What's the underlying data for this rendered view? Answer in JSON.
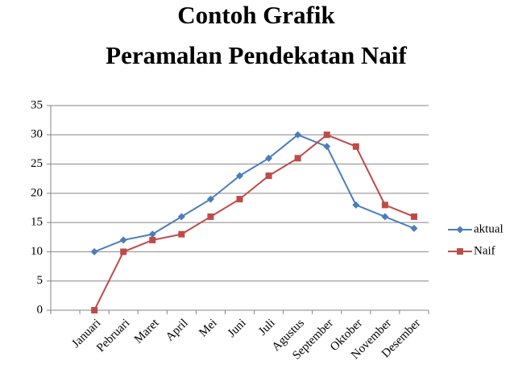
{
  "chart_data": {
    "type": "line",
    "title": "Contoh Grafik",
    "subtitle": "Peramalan Pendekatan Naif",
    "categories": [
      null,
      "Januari",
      "Pebruari",
      "Maret",
      "April",
      "Mei",
      "Juni",
      "Juli",
      "Agustus",
      "September",
      "Oktober",
      "November",
      "Desember"
    ],
    "series": [
      {
        "name": "aktual",
        "color": "#4a7ebb",
        "marker": "diamond",
        "values": [
          null,
          10,
          12,
          13,
          16,
          19,
          23,
          26,
          30,
          28,
          18,
          16,
          14
        ]
      },
      {
        "name": "Naif",
        "color": "#be4b48",
        "marker": "square",
        "values": [
          null,
          0,
          10,
          12,
          13,
          16,
          19,
          23,
          26,
          30,
          28,
          18,
          16
        ]
      }
    ],
    "ylim": [
      0,
      35
    ],
    "yticks": [
      0,
      5,
      10,
      15,
      20,
      25,
      30,
      35
    ],
    "grid": true,
    "legend": "right"
  }
}
